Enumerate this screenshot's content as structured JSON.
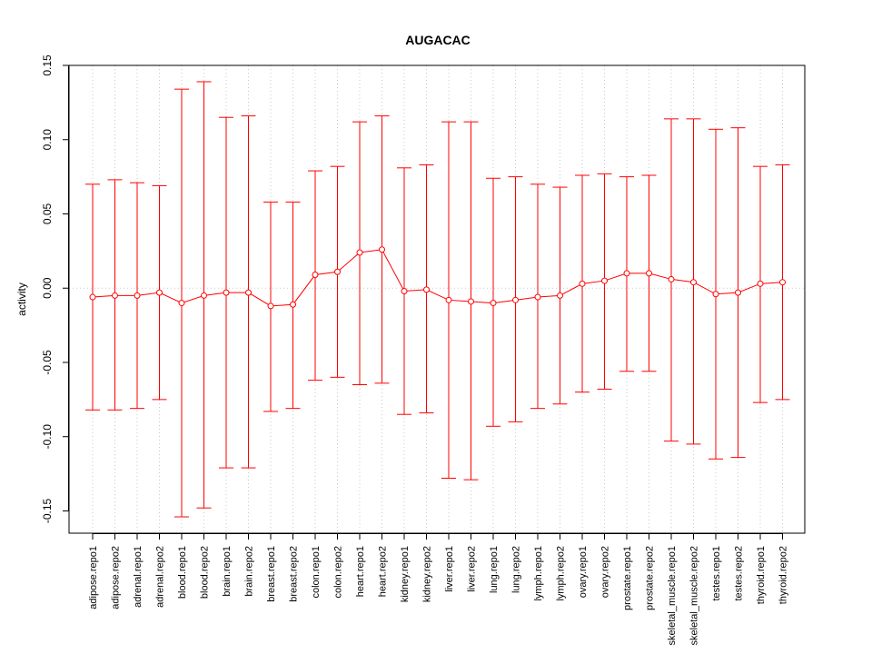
{
  "chart_data": {
    "type": "line",
    "title": "AUGACAC",
    "xlabel": "",
    "ylabel": "activity",
    "ylim": [
      -0.165,
      0.15
    ],
    "yticks": [
      -0.15,
      -0.1,
      -0.05,
      0.0,
      0.05,
      0.1,
      0.15
    ],
    "ytick_labels": [
      "-0.15",
      "-0.10",
      "-0.05",
      "0.00",
      "0.05",
      "0.10",
      "0.15"
    ],
    "grid": true,
    "error_bars": true,
    "colors": {
      "series": "#ff0000",
      "grid": "#c8c8c8",
      "axis": "#000000"
    },
    "categories": [
      "adipose.repo1",
      "adipose.repo2",
      "adrenal.repo1",
      "adrenal.repo2",
      "blood.repo1",
      "blood.repo2",
      "brain.repo1",
      "brain.repo2",
      "breast.repo1",
      "breast.repo2",
      "colon.repo1",
      "colon.repo2",
      "heart.repo1",
      "heart.repo2",
      "kidney.repo1",
      "kidney.repo2",
      "liver.repo1",
      "liver.repo2",
      "lung.repo1",
      "lung.repo2",
      "lymph.repo1",
      "lymph.repo2",
      "ovary.repo1",
      "ovary.repo2",
      "prostate.repo1",
      "prostate.repo2",
      "skeletal_muscle.repo1",
      "skeletal_muscle.repo2",
      "testes.repo1",
      "testes.repo2",
      "thyroid.repo1",
      "thyroid.repo2"
    ],
    "values": [
      -0.006,
      -0.005,
      -0.005,
      -0.003,
      -0.01,
      -0.005,
      -0.003,
      -0.003,
      -0.012,
      -0.011,
      0.009,
      0.011,
      0.024,
      0.026,
      -0.002,
      -0.001,
      -0.008,
      -0.009,
      -0.01,
      -0.008,
      -0.006,
      -0.005,
      0.003,
      0.005,
      0.01,
      0.01,
      0.006,
      0.004,
      -0.004,
      -0.003,
      0.003,
      0.004
    ],
    "upper": [
      0.07,
      0.073,
      0.071,
      0.069,
      0.134,
      0.139,
      0.115,
      0.116,
      0.058,
      0.058,
      0.079,
      0.082,
      0.112,
      0.116,
      0.081,
      0.083,
      0.112,
      0.112,
      0.074,
      0.075,
      0.07,
      0.068,
      0.076,
      0.077,
      0.075,
      0.076,
      0.114,
      0.114,
      0.107,
      0.108,
      0.082,
      0.083
    ],
    "lower": [
      -0.082,
      -0.082,
      -0.081,
      -0.075,
      -0.154,
      -0.148,
      -0.121,
      -0.121,
      -0.083,
      -0.081,
      -0.062,
      -0.06,
      -0.065,
      -0.064,
      -0.085,
      -0.084,
      -0.128,
      -0.129,
      -0.093,
      -0.09,
      -0.081,
      -0.078,
      -0.07,
      -0.068,
      -0.056,
      -0.056,
      -0.103,
      -0.105,
      -0.115,
      -0.114,
      -0.077,
      -0.075
    ]
  }
}
